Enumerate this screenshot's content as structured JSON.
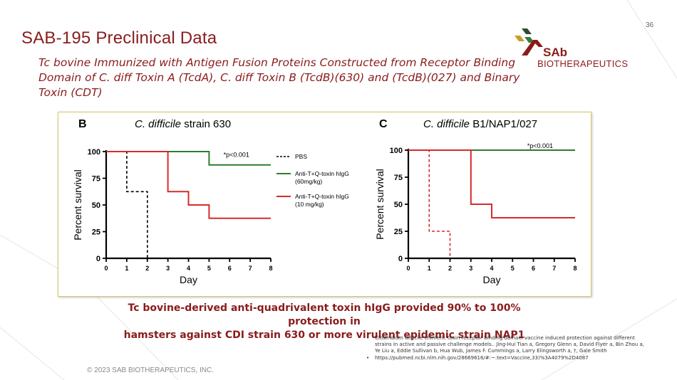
{
  "slide": {
    "page_number": "36",
    "title": "SAB-195 Preclinical Data",
    "subtitle": "Tc bovine Immunized with Antigen Fusion Proteins Constructed from Receptor Binding Domain of C. diff Toxin A (TcdA), C. diff Toxin B (TcdB)(630) and (TcdB)(027) and Binary Toxin (CDT)",
    "brand": {
      "name": "SAb",
      "tagline": "BIOTHERAPEUTICS"
    },
    "caption_line1": "Tc bovine-derived anti-quadrivalent toxin hIgG provided 90% to 100% protection in",
    "caption_line2": "hamsters against CDI strain 630 or more virulent epidemic strain NAP1",
    "references": [
      "Clostridium difficile chimeric toxin receptor binding domain vaccine induced protection against different strains in active and passive challenge models.. Jing-Hui Tian a, Gregory Glenn a, David Flyer a, Bin Zhou a, Ye Liu a, Eddie Sullivan b, Hua Wub, James F. Cummings a, Larry Elingsworth a, †, Gale Smith",
      "https://pubmed.ncbi.nlm.nih.gov/28669616/#:~:text=Vaccine,33)%3A4079%2D4087"
    ],
    "copyright": "© 2023 SAB BIOTHERAPEUTICS, INC."
  },
  "colors": {
    "brand": "#8a1c1c",
    "pbs": "#000000",
    "high_dose": "#2e7d2e",
    "low_dose": "#d62b2b"
  },
  "chart_data": [
    {
      "type": "line",
      "step": true,
      "panel": "B",
      "title_italic": "C. difficile",
      "title_rest": " strain 630",
      "xlabel": "Day",
      "ylabel": "Percent survival",
      "xlim": [
        0,
        8
      ],
      "ylim": [
        0,
        100
      ],
      "xticks": [
        0,
        1,
        2,
        3,
        4,
        5,
        6,
        7,
        8
      ],
      "yticks": [
        0,
        25,
        50,
        75,
        100
      ],
      "annotation": "*p<0.001",
      "series": [
        {
          "name": "PBS",
          "color": "#000000",
          "dashed": true,
          "points": [
            [
              0,
              100
            ],
            [
              1,
              100
            ],
            [
              1,
              62.5
            ],
            [
              2,
              62.5
            ],
            [
              2,
              0
            ]
          ]
        },
        {
          "name": "Anti-T+Q-toxin hIgG (60mg/kg)",
          "color": "#2e7d2e",
          "dashed": false,
          "points": [
            [
              0,
              100
            ],
            [
              5,
              100
            ],
            [
              5,
              87.5
            ],
            [
              8,
              87.5
            ]
          ]
        },
        {
          "name": "Anti-T+Q-toxin hIgG (10 mg/kg)",
          "color": "#d62b2b",
          "dashed": false,
          "points": [
            [
              0,
              100
            ],
            [
              3,
              100
            ],
            [
              3,
              62.5
            ],
            [
              4,
              62.5
            ],
            [
              4,
              50
            ],
            [
              5,
              50
            ],
            [
              5,
              37.5
            ],
            [
              8,
              37.5
            ]
          ]
        }
      ],
      "legend": [
        {
          "lines": [
            "PBS"
          ],
          "color": "#000000",
          "dashed": true
        },
        {
          "lines": [
            "Anti-T+Q-toxin hIgG",
            "(60mg/kg)"
          ],
          "color": "#2e7d2e",
          "dashed": false
        },
        {
          "lines": [
            "Anti-T+Q-toxin hIgG",
            "(10 mg/kg)"
          ],
          "color": "#d62b2b",
          "dashed": false
        }
      ]
    },
    {
      "type": "line",
      "step": true,
      "panel": "C",
      "title_italic": "C. difficile",
      "title_rest": " B1/NAP1/027",
      "xlabel": "Day",
      "ylabel": "Percent survival",
      "xlim": [
        0,
        8
      ],
      "ylim": [
        0,
        100
      ],
      "xticks": [
        0,
        1,
        2,
        3,
        4,
        5,
        6,
        7,
        8
      ],
      "yticks": [
        0,
        25,
        50,
        75,
        100
      ],
      "annotation": "*p<0.001",
      "series": [
        {
          "name": "PBS",
          "color": "#d62b2b",
          "dashed": true,
          "points": [
            [
              0,
              100
            ],
            [
              1,
              100
            ],
            [
              1,
              25
            ],
            [
              2,
              25
            ],
            [
              2,
              0
            ]
          ]
        },
        {
          "name": "Anti-T+Q-toxin hIgG (60mg/kg)",
          "color": "#2e7d2e",
          "dashed": false,
          "points": [
            [
              0,
              100
            ],
            [
              8,
              100
            ]
          ]
        },
        {
          "name": "Anti-T+Q-toxin hIgG (10 mg/kg)",
          "color": "#d62b2b",
          "dashed": false,
          "points": [
            [
              0,
              100
            ],
            [
              3,
              100
            ],
            [
              3,
              50
            ],
            [
              4,
              50
            ],
            [
              4,
              37.5
            ],
            [
              8,
              37.5
            ]
          ]
        }
      ],
      "legend": []
    }
  ]
}
